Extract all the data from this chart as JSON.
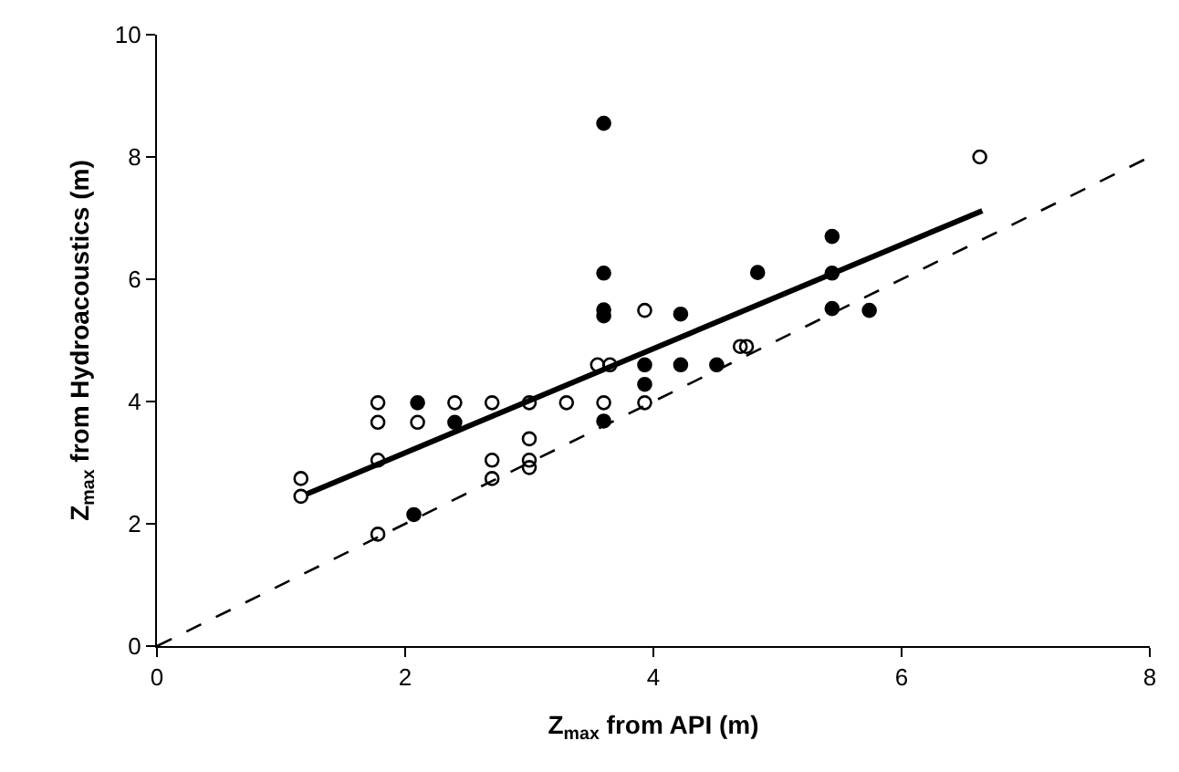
{
  "chart_data": {
    "type": "scatter",
    "xlabel": "Z$_{max}$ from API (m)",
    "ylabel": "Z$_{max}$ from Hydroacoustics (m)",
    "xlim": [
      0,
      8
    ],
    "xticks": [
      0,
      2,
      4,
      6,
      8
    ],
    "ylim": [
      0,
      10
    ],
    "yticks": [
      0,
      2,
      4,
      6,
      8,
      10
    ],
    "grid": false,
    "legend": false,
    "series": [
      {
        "marker": "circle-open",
        "color": "#000000",
        "x": [
          1.16,
          1.16,
          1.78,
          1.78,
          1.78,
          1.78,
          2.1,
          2.4,
          2.7,
          2.7,
          2.7,
          3.0,
          3.0,
          3.0,
          3.0,
          3.3,
          3.6,
          3.55,
          3.65,
          3.93,
          3.93,
          4.7,
          4.75,
          6.63
        ],
        "values": [
          2.74,
          2.45,
          3.98,
          3.66,
          3.04,
          1.83,
          3.66,
          3.98,
          3.98,
          3.04,
          2.74,
          3.98,
          3.39,
          3.04,
          2.92,
          3.98,
          3.98,
          4.6,
          4.6,
          5.49,
          3.98,
          4.9,
          4.9,
          8.0
        ]
      },
      {
        "marker": "circle",
        "color": "#000000",
        "x": [
          2.1,
          2.4,
          2.07,
          3.6,
          3.6,
          3.6,
          3.6,
          3.6,
          3.93,
          3.93,
          4.22,
          4.22,
          4.51,
          4.84,
          5.44,
          5.44,
          5.44,
          5.74
        ],
        "values": [
          3.98,
          3.66,
          2.15,
          8.55,
          6.1,
          5.5,
          5.4,
          3.68,
          4.6,
          4.28,
          5.43,
          4.6,
          4.6,
          6.11,
          6.7,
          6.1,
          5.52,
          5.49
        ]
      },
      {
        "type": "line",
        "line_style": "solid",
        "color": "#000000",
        "x": [
          1.2,
          6.65
        ],
        "values": [
          2.48,
          7.12
        ]
      },
      {
        "type": "line",
        "line_style": "dashed",
        "color": "#000000",
        "x": [
          0,
          8
        ],
        "values": [
          0,
          8
        ]
      }
    ]
  }
}
